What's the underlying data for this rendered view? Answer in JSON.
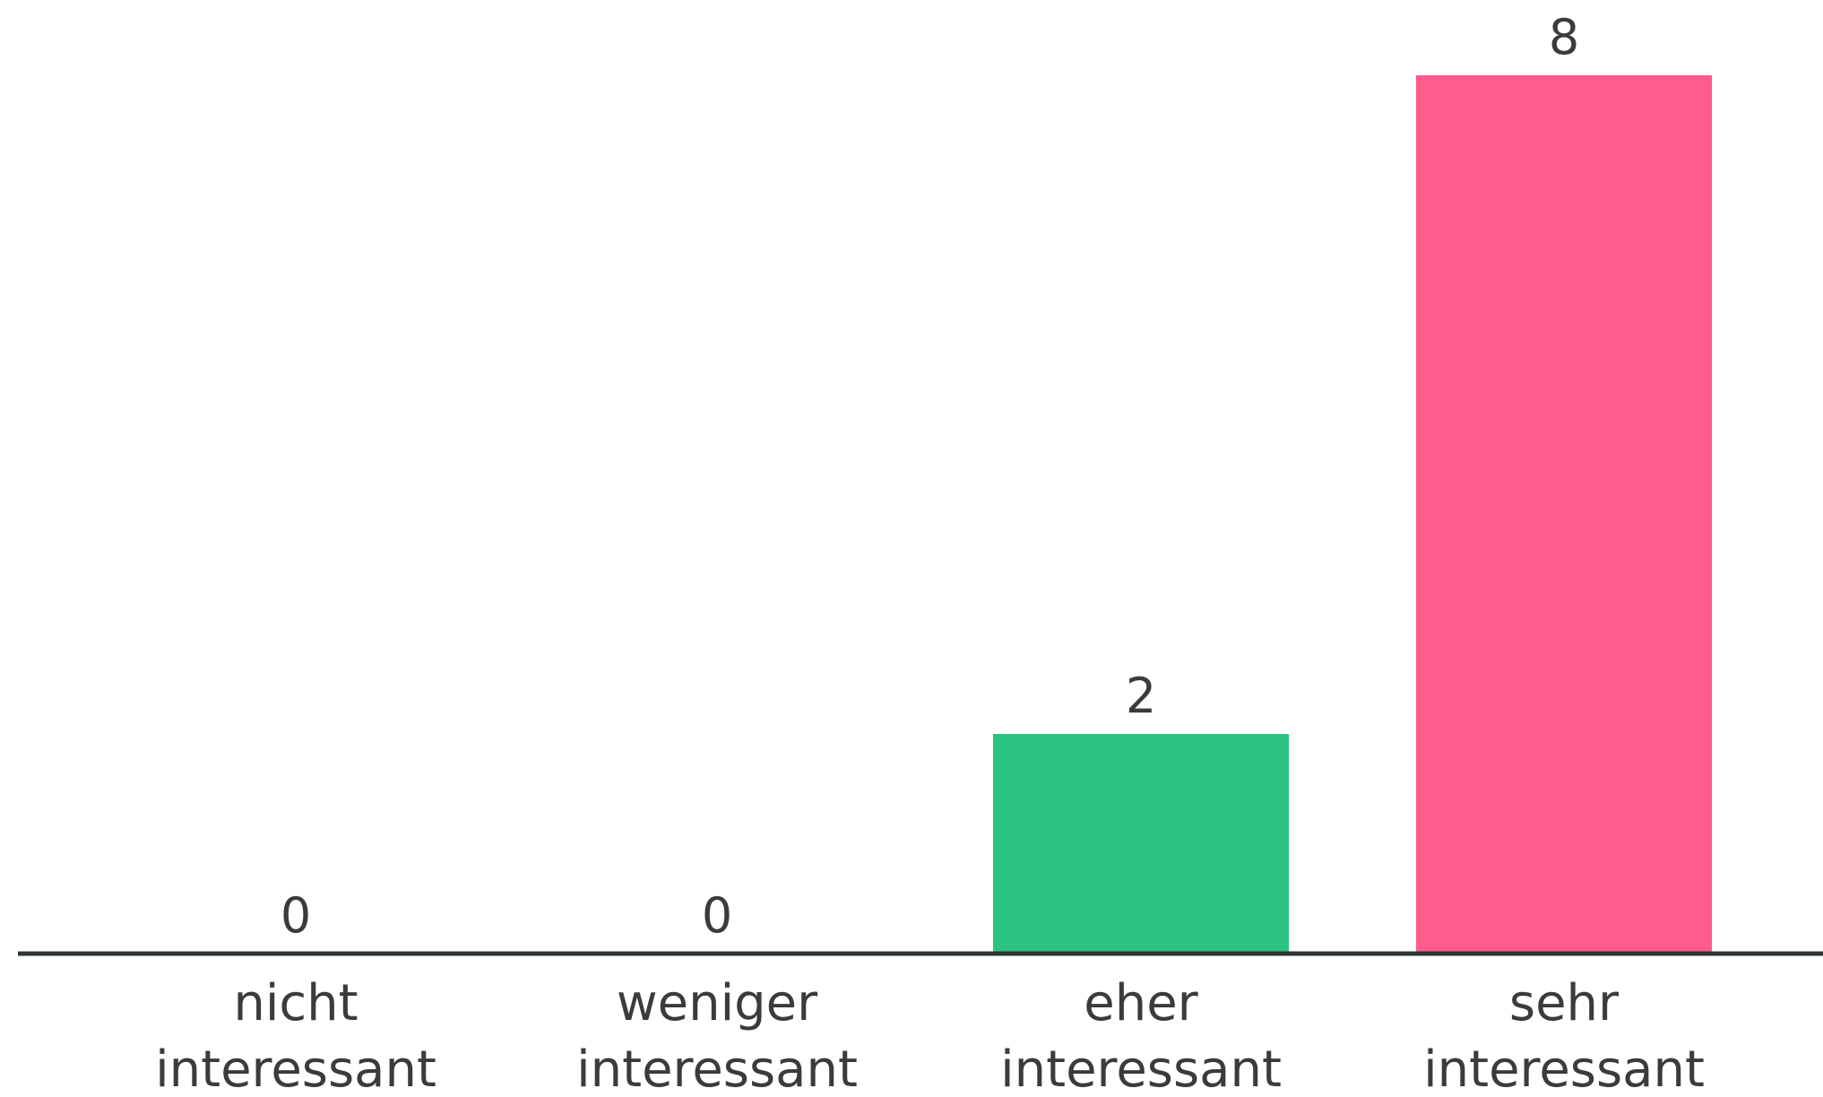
{
  "chart_data": {
    "type": "bar",
    "title": "",
    "xlabel": "",
    "ylabel": "",
    "categories": [
      [
        "nicht",
        "interessant"
      ],
      [
        "weniger",
        "interessant"
      ],
      [
        "eher",
        "interessant"
      ],
      [
        "sehr",
        "interessant"
      ]
    ],
    "values": [
      0,
      0,
      2,
      8
    ],
    "colors": [
      "#5b7bd5",
      "#e0575b",
      "#2ac37f",
      "#ff5b8d"
    ],
    "data_labels": [
      "0",
      "0",
      "2",
      "8"
    ],
    "ylim": [
      0,
      8
    ],
    "grid": false,
    "legend": "none"
  },
  "style": {
    "axis_color": "#2f3437",
    "label_color": "#3b3b3b",
    "background": "#ffffff"
  }
}
